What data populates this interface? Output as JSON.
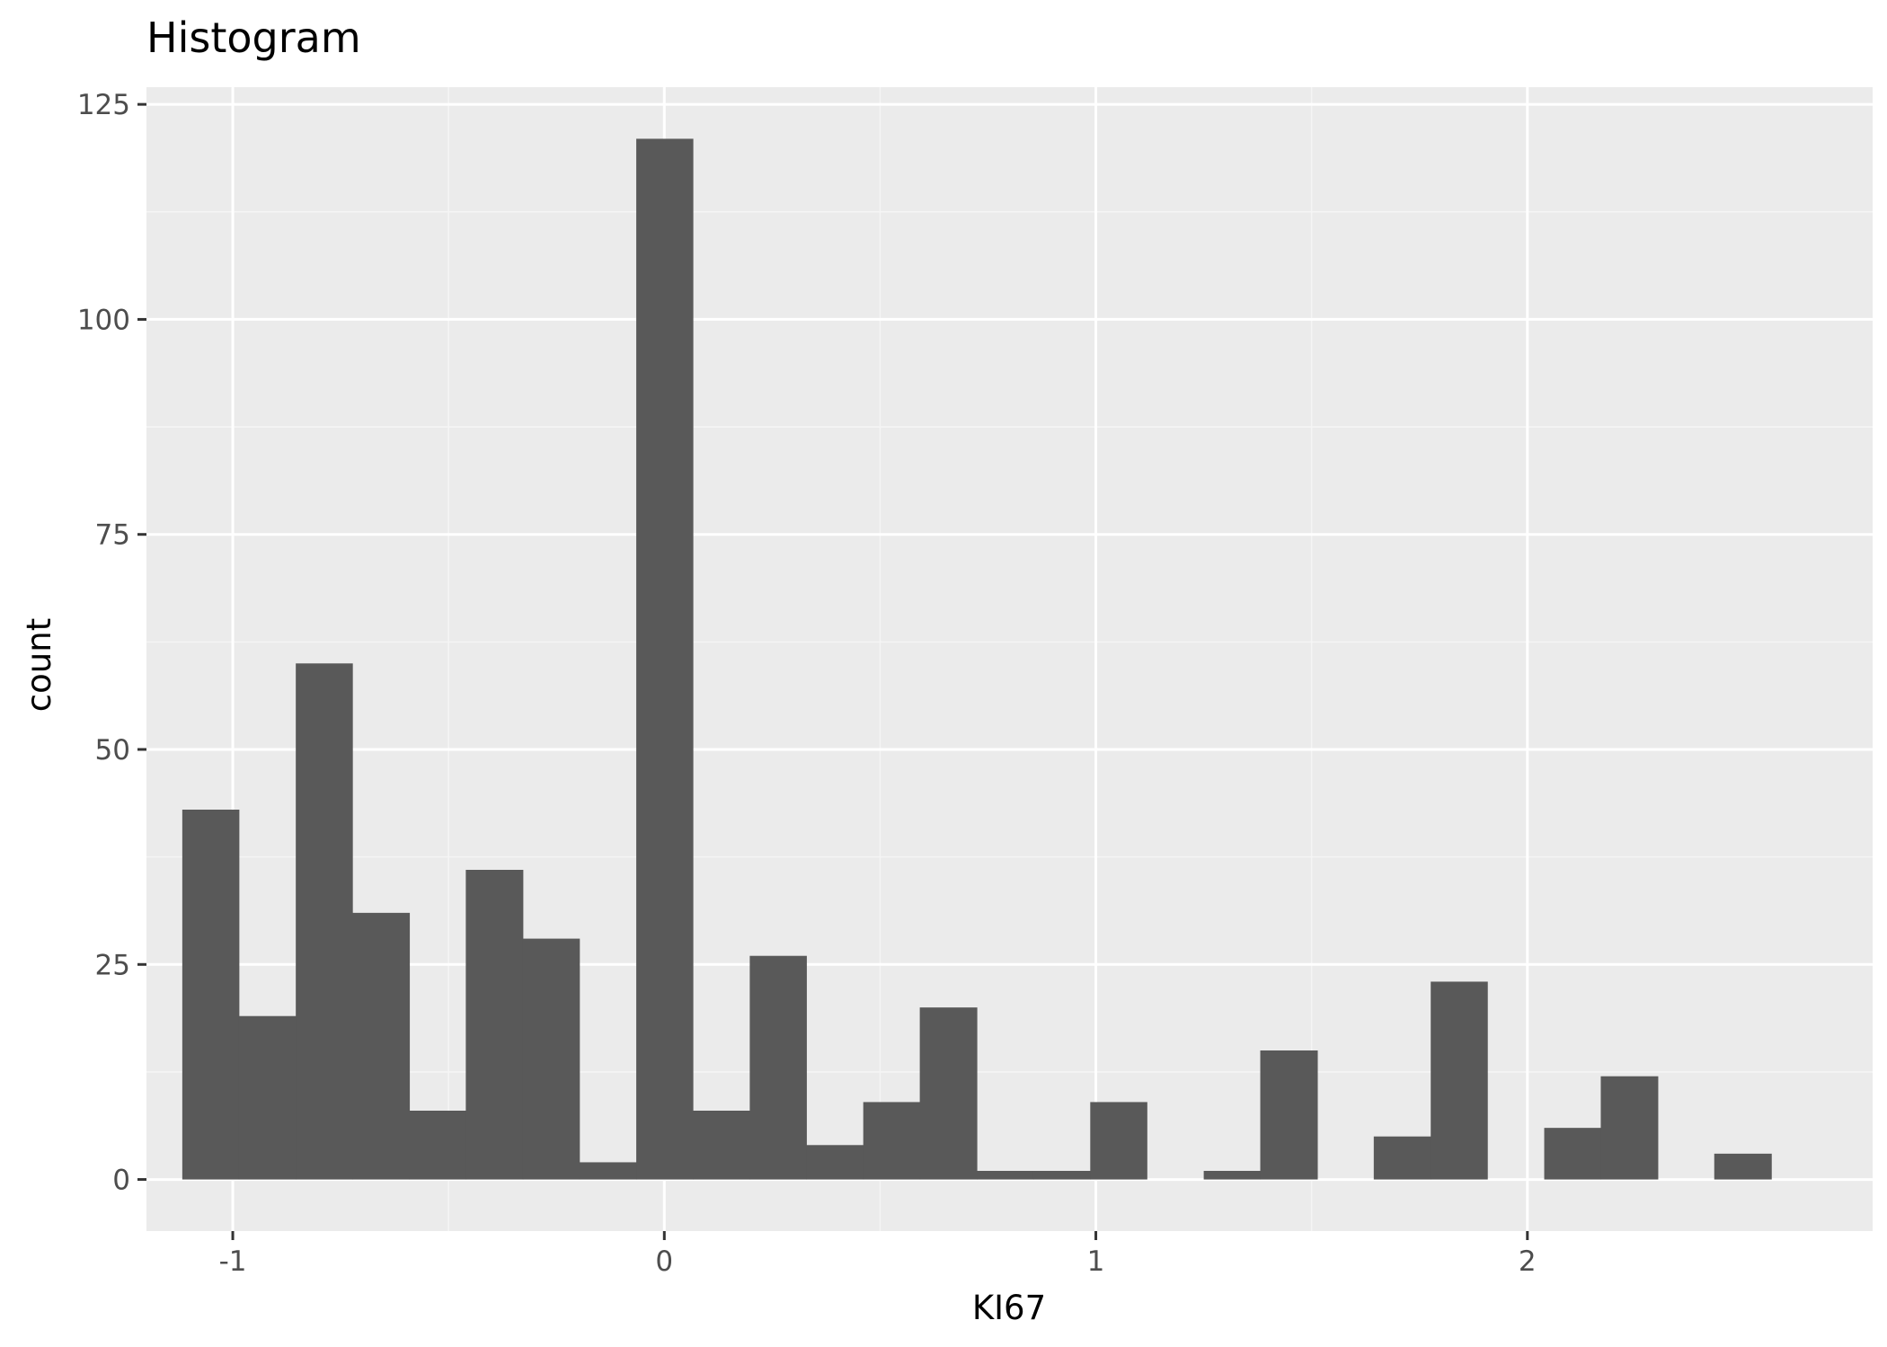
{
  "chart_data": {
    "type": "bar",
    "title": "Histogram",
    "xlabel": "KI67",
    "ylabel": "count",
    "xlim": [
      -1.2,
      2.8
    ],
    "ylim": [
      -6,
      127
    ],
    "xticks": [
      -1,
      0,
      1,
      2
    ],
    "xtick_labels": [
      "-1",
      "0",
      "1",
      "2"
    ],
    "yticks": [
      0,
      25,
      50,
      75,
      100,
      125
    ],
    "ytick_labels": [
      "0",
      "25",
      "50",
      "75",
      "100",
      "125"
    ],
    "grid": true,
    "bin_width": 0.1315,
    "bins": [
      {
        "x0": -1.117,
        "x1": -0.986,
        "count": 43
      },
      {
        "x0": -0.986,
        "x1": -0.854,
        "count": 19
      },
      {
        "x0": -0.854,
        "x1": -0.723,
        "count": 60
      },
      {
        "x0": -0.723,
        "x1": -0.591,
        "count": 31
      },
      {
        "x0": -0.591,
        "x1": -0.46,
        "count": 8
      },
      {
        "x0": -0.46,
        "x1": -0.328,
        "count": 36
      },
      {
        "x0": -0.328,
        "x1": -0.197,
        "count": 28
      },
      {
        "x0": -0.197,
        "x1": -0.065,
        "count": 2
      },
      {
        "x0": -0.065,
        "x1": 0.066,
        "count": 121
      },
      {
        "x0": 0.066,
        "x1": 0.198,
        "count": 8
      },
      {
        "x0": 0.198,
        "x1": 0.329,
        "count": 26
      },
      {
        "x0": 0.329,
        "x1": 0.461,
        "count": 4
      },
      {
        "x0": 0.461,
        "x1": 0.592,
        "count": 9
      },
      {
        "x0": 0.592,
        "x1": 0.724,
        "count": 20
      },
      {
        "x0": 0.724,
        "x1": 0.855,
        "count": 1
      },
      {
        "x0": 0.855,
        "x1": 0.987,
        "count": 1
      },
      {
        "x0": 0.987,
        "x1": 1.118,
        "count": 9
      },
      {
        "x0": 1.118,
        "x1": 1.25,
        "count": 0
      },
      {
        "x0": 1.25,
        "x1": 1.381,
        "count": 1
      },
      {
        "x0": 1.381,
        "x1": 1.513,
        "count": 15
      },
      {
        "x0": 1.513,
        "x1": 1.644,
        "count": 0
      },
      {
        "x0": 1.644,
        "x1": 1.776,
        "count": 5
      },
      {
        "x0": 1.776,
        "x1": 1.907,
        "count": 23
      },
      {
        "x0": 1.907,
        "x1": 2.039,
        "count": 0
      },
      {
        "x0": 2.039,
        "x1": 2.17,
        "count": 6
      },
      {
        "x0": 2.17,
        "x1": 2.302,
        "count": 12
      },
      {
        "x0": 2.302,
        "x1": 2.433,
        "count": 0
      },
      {
        "x0": 2.433,
        "x1": 2.565,
        "count": 3
      }
    ],
    "colors": {
      "bar": "#595959",
      "panel": "#ebebeb",
      "grid_major": "#ffffff",
      "grid_minor": "#f5f5f5",
      "tick": "#333333"
    }
  }
}
